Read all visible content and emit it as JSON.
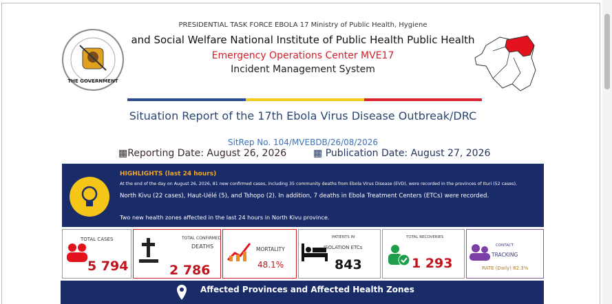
{
  "header": {
    "line1": "PRESIDENTIAL TASK FORCE EBOLA 17 Ministry of Public Health, Hygiene",
    "line2": "and Social Welfare National Institute of Public Health Public Health",
    "line3": "Emergency Operations Center MVE17",
    "line4": "Incident Management System",
    "logo_text": "THE GOVERNMENT"
  },
  "title": "Situation Report of the 17th Ebola Virus Disease Outbreak/DRC",
  "sitrep": "SitRep No. 104/MVEBDB/26/08/2026",
  "reporting_date": "Reporting Date: August 26, 2026",
  "publication_date": "Publication Date: August 27, 2026",
  "highlights": {
    "title": "HIGHLIGHTS (last 24 hours)",
    "p1": "At the end of the day on August 26, 2026, 81 new confirmed cases, including 35 community deaths from Ebola Virus Disease (EVD), were recorded in the provinces of Ituri (52 cases),",
    "p2": "North Kivu (22 cases), Haut-Uélé (5), and Tshopo (2). In addition, 7 deaths in Ebola Treatment Centers (ETCs) were recorded.",
    "p3": "Two new health zones affected in the last 24 hours in North Kivu province."
  },
  "stats": [
    {
      "label": "TOTAL CASES",
      "value": "5 794"
    },
    {
      "label": "TOTAL CONFIRMED",
      "label2": "DEATHS",
      "value": "2 786"
    },
    {
      "label": "MORTALITY",
      "value": "48.1%"
    },
    {
      "label": "PATIENTS IN",
      "label2": "ISOLATION ETCs",
      "value": "843"
    },
    {
      "label": "TOTAL RECOVERIES",
      "value": "1 293"
    },
    {
      "label": "CONTACT",
      "label2": "TRACKING",
      "value": "RATE (Daily) 82.3%"
    }
  ],
  "section": "Affected Provinces and Affected Health Zones"
}
